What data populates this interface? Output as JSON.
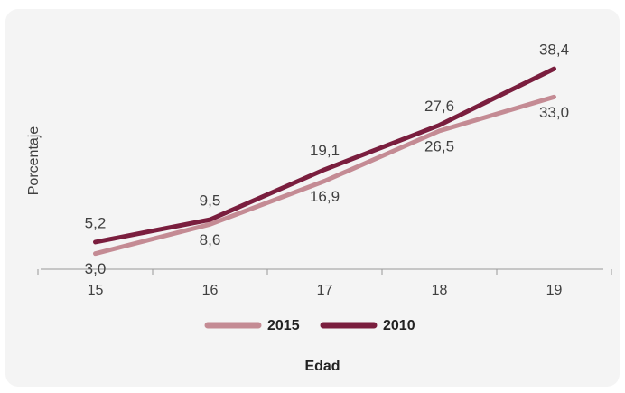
{
  "chart_data": {
    "type": "line",
    "x_label": "Edad",
    "y_label": "Porcentaje",
    "categories": [
      "15",
      "16",
      "17",
      "18",
      "19"
    ],
    "series": [
      {
        "name": "2015",
        "color": "#c48b94",
        "values": [
          3.0,
          8.6,
          16.9,
          26.5,
          33.0
        ],
        "value_labels": [
          "3,0",
          "8,6",
          "16,9",
          "26,5",
          "33,0"
        ]
      },
      {
        "name": "2010",
        "color": "#7a1e3e",
        "values": [
          5.2,
          9.5,
          19.1,
          27.6,
          38.4
        ],
        "value_labels": [
          "5,2",
          "9,5",
          "19,1",
          "27,6",
          "38,4"
        ]
      }
    ],
    "ylim": [
      0,
      45
    ]
  }
}
